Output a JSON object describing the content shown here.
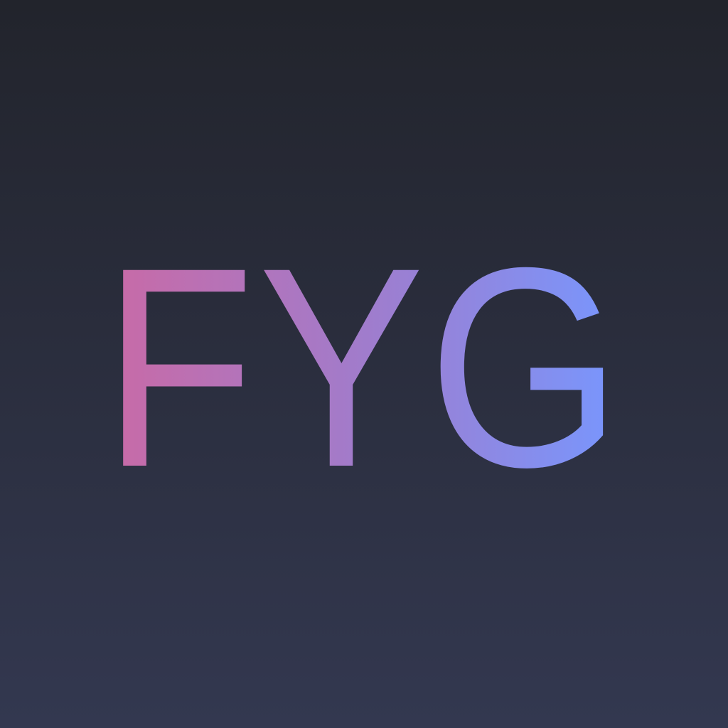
{
  "logo": {
    "text": "FYG",
    "gradient_start": "#c96aa6",
    "gradient_mid": "#a07ccc",
    "gradient_end": "#7797ff"
  },
  "background": {
    "top": "#22242c",
    "bottom": "#333850"
  }
}
